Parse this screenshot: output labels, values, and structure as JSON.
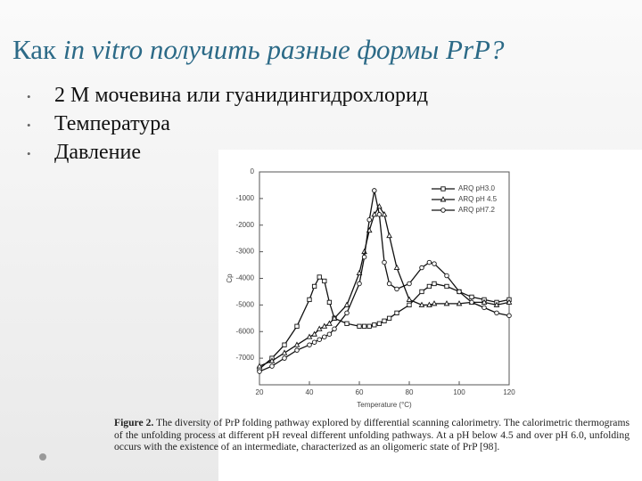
{
  "title": [
    "Как",
    "in vitro получить разные формы PrP?"
  ],
  "bullets": [
    "2 М мочевина или гуанидингидрохлорид",
    "Температура",
    "Давление"
  ],
  "caption": {
    "label": "Figure 2.",
    "text": "The diversity of PrP folding pathway explored by differential scanning calorimetry. The calorimetric thermograms of the unfolding process at different pH reveal different unfolding pathways. At a pH below 4.5 and over pH 6.0, unfolding occurs with the existence of an intermediate, characterized as an oligomeric state of PrP [98]."
  },
  "chart_data": {
    "type": "line",
    "xlabel": "Temperature (°C)",
    "ylabel": "Cp",
    "x": [
      20,
      25,
      30,
      35,
      40,
      42,
      44,
      46,
      48,
      50,
      55,
      60,
      62,
      64,
      66,
      68,
      70,
      72,
      75,
      80,
      85,
      88,
      90,
      95,
      100,
      105,
      110,
      115,
      120
    ],
    "series": [
      {
        "name": "ARQ pH3.0",
        "color": "#111111",
        "marker": "square",
        "values": [
          -7400,
          -7000,
          -6500,
          -5800,
          -4800,
          -4300,
          -3950,
          -4100,
          -4900,
          -5500,
          -5700,
          -5800,
          -5800,
          -5800,
          -5750,
          -5700,
          -5600,
          -5500,
          -5300,
          -5000,
          -4500,
          -4300,
          -4200,
          -4300,
          -4500,
          -4700,
          -4800,
          -4900,
          -4800
        ]
      },
      {
        "name": "ARQ pH 4.5",
        "color": "#111111",
        "marker": "triangle",
        "values": [
          -7300,
          -7100,
          -6800,
          -6500,
          -6200,
          -6100,
          -5900,
          -5800,
          -5700,
          -5500,
          -5000,
          -3800,
          -3000,
          -2200,
          -1600,
          -1300,
          -1600,
          -2400,
          -3600,
          -4800,
          -5000,
          -5000,
          -4950,
          -4950,
          -4950,
          -4900,
          -4900,
          -5000,
          -4900
        ]
      },
      {
        "name": "ARQ pH7.2",
        "color": "#111111",
        "marker": "circle",
        "values": [
          -7500,
          -7300,
          -7000,
          -6700,
          -6500,
          -6400,
          -6300,
          -6200,
          -6100,
          -5900,
          -5300,
          -4200,
          -3200,
          -1800,
          -700,
          -1600,
          -3400,
          -4200,
          -4400,
          -4200,
          -3600,
          -3400,
          -3450,
          -3900,
          -4500,
          -4900,
          -5100,
          -5300,
          -5400
        ]
      }
    ],
    "xlim": [
      20,
      120
    ],
    "xticks": [
      20,
      40,
      60,
      80,
      100,
      120
    ],
    "ylim": [
      -8000,
      0
    ],
    "yticks": [
      0,
      -1000,
      -2000,
      -3000,
      -4000,
      -5000,
      -6000,
      -7000
    ],
    "legend": "upper right"
  }
}
